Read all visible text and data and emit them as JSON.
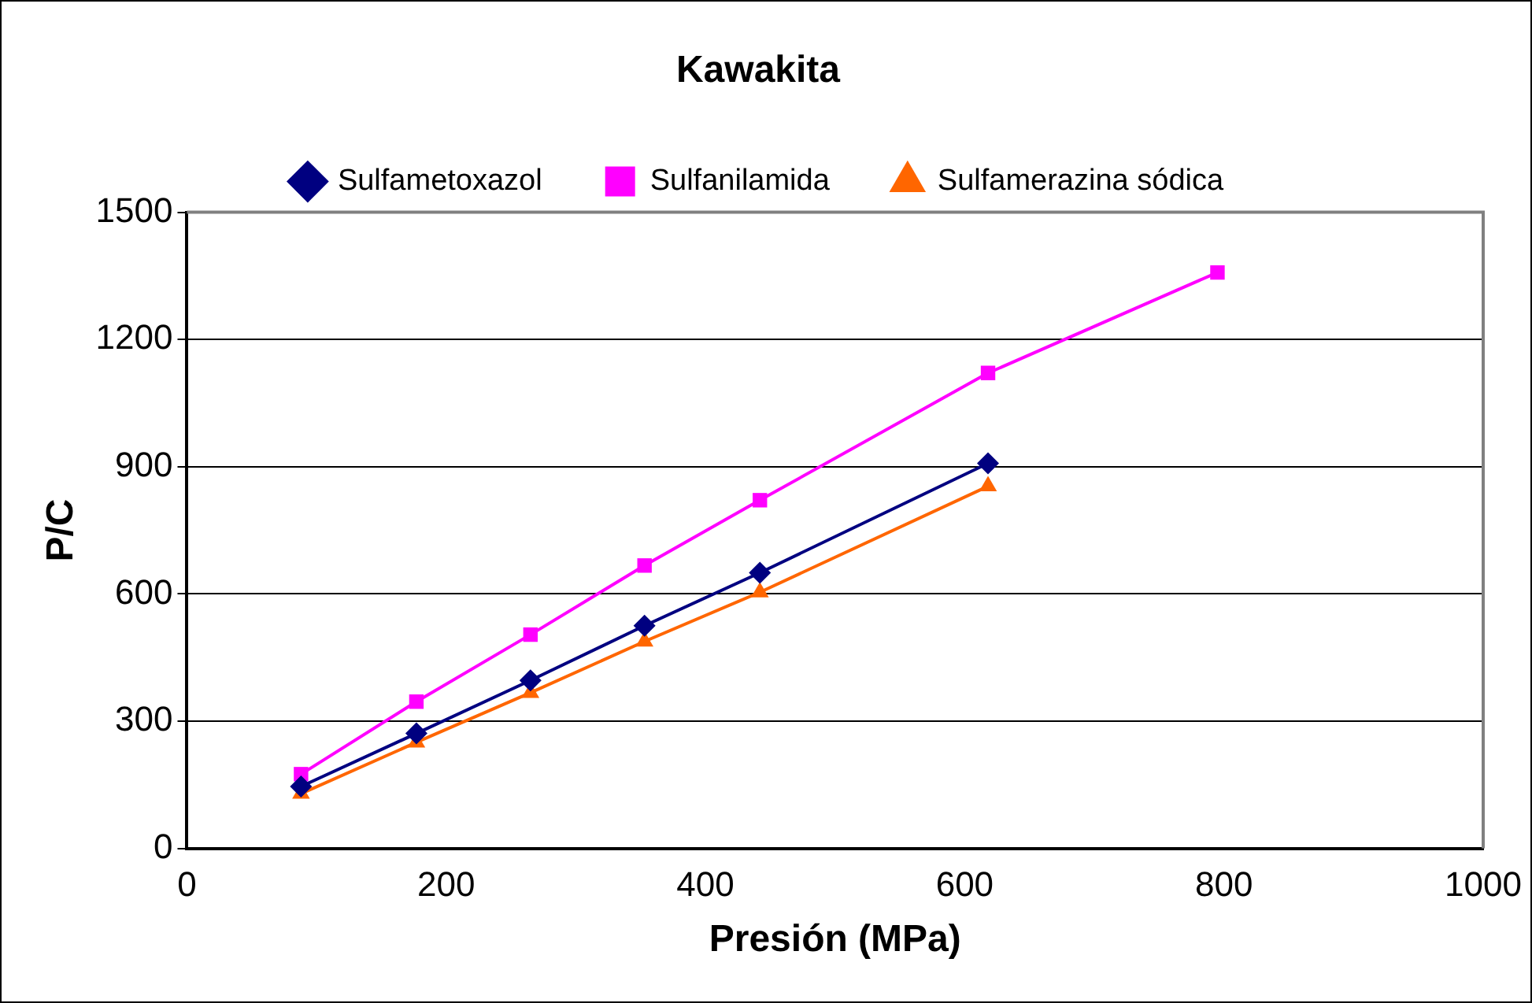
{
  "chart_data": {
    "type": "line",
    "title": "Kawakita",
    "xlabel": "Presión (MPa)",
    "ylabel": "P/C",
    "xlim": [
      0,
      1000
    ],
    "xticks": [
      0,
      200,
      400,
      600,
      800,
      1000
    ],
    "ylim": [
      0,
      1500
    ],
    "yticks": [
      0,
      300,
      600,
      900,
      1200,
      1500
    ],
    "grid": "y",
    "legend": "top",
    "line_style": "solid",
    "series": [
      {
        "name": "Sulfametoxazol",
        "color": "#000080",
        "marker": "diamond",
        "x": [
          88,
          177,
          265,
          353,
          442,
          618
        ],
        "values": [
          146,
          271,
          396,
          525,
          650,
          908
        ]
      },
      {
        "name": "Sulfanilamida",
        "color": "#ff00ff",
        "marker": "square",
        "x": [
          88,
          177,
          265,
          353,
          442,
          618,
          795
        ],
        "values": [
          175,
          346,
          504,
          667,
          821,
          1121,
          1358
        ]
      },
      {
        "name": "Sulfamerazina sódica",
        "color": "#ff6600",
        "marker": "triangle",
        "x": [
          88,
          177,
          265,
          353,
          442,
          618
        ],
        "values": [
          129,
          250,
          367,
          488,
          604,
          854
        ]
      }
    ]
  }
}
